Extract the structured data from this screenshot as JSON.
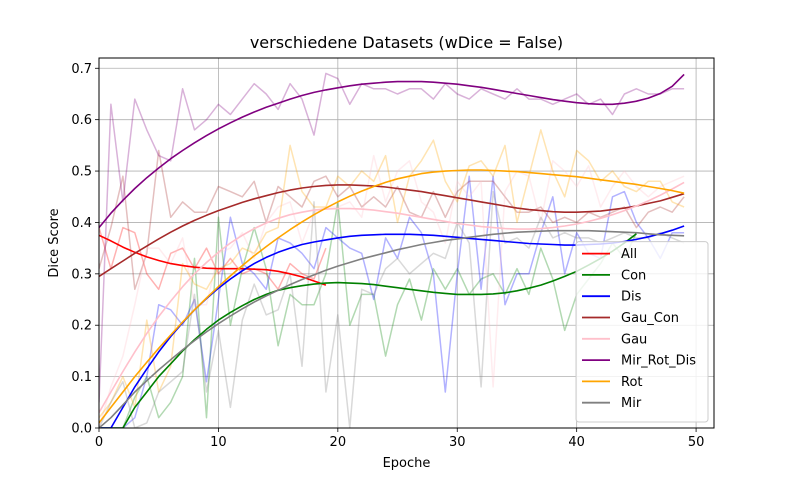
{
  "chart_data": {
    "type": "line",
    "title": "verschiedene Datasets (wDice = False)",
    "xlabel": "Epoche",
    "ylabel": "Dice Score",
    "xlim": [
      0,
      51.5
    ],
    "ylim": [
      0,
      0.72
    ],
    "xticks": [
      0,
      10,
      20,
      30,
      40,
      50
    ],
    "yticks": [
      0.0,
      0.1,
      0.2,
      0.3,
      0.4,
      0.5,
      0.6,
      0.7
    ],
    "grid": true,
    "legend_position": "lower-right",
    "series": [
      {
        "name": "All",
        "color": "#ff0000",
        "raw": [
          0.39,
          0.31,
          0.39,
          0.38,
          0.3,
          0.27,
          0.34,
          0.35,
          0.31,
          0.35,
          0.3,
          0.33,
          0.3,
          0.31,
          0.3,
          0.27,
          0.32,
          0.3,
          0.29,
          0.35
        ],
        "fit": [
          0.375,
          0.364,
          0.352,
          0.342,
          0.333,
          0.326,
          0.32,
          0.316,
          0.313,
          0.311,
          0.31,
          0.31,
          0.31,
          0.309,
          0.308,
          0.305,
          0.3,
          0.294,
          0.286,
          0.278
        ]
      },
      {
        "name": "Con",
        "color": "#008000",
        "raw": [
          0.0,
          0.0,
          0.0,
          0.06,
          0.1,
          0.02,
          0.05,
          0.1,
          0.33,
          0.02,
          0.41,
          0.2,
          0.31,
          0.39,
          0.31,
          0.16,
          0.26,
          0.24,
          0.24,
          0.3,
          0.44,
          0.2,
          0.26,
          0.26,
          0.14,
          0.24,
          0.29,
          0.21,
          0.31,
          0.27,
          0.31,
          0.26,
          0.29,
          0.3,
          0.26,
          0.31,
          0.26,
          0.35,
          0.29,
          0.19,
          0.26,
          0.29,
          0.32,
          0.36,
          0.33,
          0.38
        ],
        "fit": [
          0.0,
          0.0,
          0.0,
          0.04,
          0.07,
          0.1,
          0.125,
          0.15,
          0.172,
          0.192,
          0.21,
          0.225,
          0.238,
          0.25,
          0.26,
          0.268,
          0.273,
          0.277,
          0.28,
          0.282,
          0.283,
          0.282,
          0.281,
          0.279,
          0.276,
          0.273,
          0.27,
          0.267,
          0.264,
          0.262,
          0.26,
          0.26,
          0.26,
          0.261,
          0.263,
          0.267,
          0.272,
          0.278,
          0.286,
          0.295,
          0.305,
          0.317,
          0.33,
          0.344,
          0.36,
          0.378
        ]
      },
      {
        "name": "Dis",
        "color": "#0000ff",
        "raw": [
          0.0,
          0.0,
          0.0,
          0.02,
          0.1,
          0.24,
          0.23,
          0.2,
          0.25,
          0.09,
          0.25,
          0.41,
          0.32,
          0.3,
          0.27,
          0.37,
          0.36,
          0.34,
          0.31,
          0.39,
          0.37,
          0.35,
          0.34,
          0.25,
          0.37,
          0.33,
          0.41,
          0.38,
          0.3,
          0.07,
          0.3,
          0.49,
          0.27,
          0.49,
          0.24,
          0.3,
          0.3,
          0.38,
          0.45,
          0.3,
          0.38,
          0.34,
          0.33,
          0.45,
          0.46,
          0.4,
          0.37,
          0.33,
          0.38,
          0.38
        ],
        "fit": [
          0.0,
          0.0,
          0.04,
          0.08,
          0.115,
          0.148,
          0.178,
          0.205,
          0.23,
          0.252,
          0.272,
          0.29,
          0.306,
          0.32,
          0.332,
          0.342,
          0.35,
          0.357,
          0.362,
          0.366,
          0.37,
          0.373,
          0.375,
          0.376,
          0.377,
          0.377,
          0.377,
          0.376,
          0.375,
          0.373,
          0.371,
          0.369,
          0.367,
          0.365,
          0.363,
          0.361,
          0.359,
          0.358,
          0.357,
          0.356,
          0.356,
          0.357,
          0.358,
          0.36,
          0.363,
          0.367,
          0.372,
          0.378,
          0.385,
          0.393
        ]
      },
      {
        "name": "Gau_Con",
        "color": "#a52a2a",
        "raw": [
          0.31,
          0.39,
          0.49,
          0.27,
          0.34,
          0.54,
          0.41,
          0.44,
          0.42,
          0.42,
          0.47,
          0.46,
          0.45,
          0.48,
          0.4,
          0.47,
          0.45,
          0.43,
          0.48,
          0.49,
          0.45,
          0.47,
          0.43,
          0.45,
          0.43,
          0.47,
          0.42,
          0.41,
          0.46,
          0.41,
          0.46,
          0.48,
          0.48,
          0.48,
          0.45,
          0.42,
          0.42,
          0.43,
          0.4,
          0.41,
          0.4,
          0.42,
          0.41,
          0.42,
          0.43,
          0.39,
          0.42,
          0.43,
          0.42,
          0.45
        ],
        "fit": [
          0.295,
          0.31,
          0.325,
          0.34,
          0.354,
          0.368,
          0.381,
          0.393,
          0.404,
          0.414,
          0.423,
          0.431,
          0.439,
          0.446,
          0.452,
          0.458,
          0.463,
          0.467,
          0.47,
          0.472,
          0.473,
          0.473,
          0.472,
          0.471,
          0.469,
          0.466,
          0.463,
          0.46,
          0.456,
          0.452,
          0.448,
          0.444,
          0.44,
          0.436,
          0.432,
          0.428,
          0.425,
          0.423,
          0.421,
          0.42,
          0.42,
          0.421,
          0.422,
          0.425,
          0.428,
          0.432,
          0.437,
          0.442,
          0.449,
          0.456
        ]
      },
      {
        "name": "Gau",
        "color": "#ffc0cb",
        "raw": [
          0.0,
          0.08,
          0.14,
          0.24,
          0.35,
          0.35,
          0.32,
          0.37,
          0.24,
          0.24,
          0.34,
          0.35,
          0.38,
          0.33,
          0.4,
          0.43,
          0.44,
          0.36,
          0.42,
          0.43,
          0.43,
          0.44,
          0.41,
          0.53,
          0.44,
          0.5,
          0.52,
          0.44,
          0.42,
          0.36,
          0.48,
          0.45,
          0.48,
          0.08,
          0.46,
          0.5,
          0.49,
          0.4,
          0.52,
          0.5,
          0.47,
          0.51,
          0.43,
          0.47,
          0.5,
          0.47,
          0.45,
          0.47,
          0.48,
          0.49
        ],
        "fit": [
          0.03,
          0.07,
          0.11,
          0.148,
          0.184,
          0.217,
          0.247,
          0.275,
          0.3,
          0.322,
          0.342,
          0.36,
          0.375,
          0.388,
          0.399,
          0.408,
          0.415,
          0.42,
          0.424,
          0.426,
          0.427,
          0.427,
          0.426,
          0.424,
          0.421,
          0.418,
          0.414,
          0.41,
          0.406,
          0.402,
          0.398,
          0.395,
          0.392,
          0.39,
          0.388,
          0.387,
          0.387,
          0.388,
          0.39,
          0.393,
          0.397,
          0.402,
          0.408,
          0.415,
          0.423,
          0.432,
          0.442,
          0.453,
          0.465,
          0.478
        ]
      },
      {
        "name": "Mir_Rot_Dis",
        "color": "#800080",
        "raw": [
          0.05,
          0.63,
          0.44,
          0.64,
          0.58,
          0.53,
          0.52,
          0.66,
          0.58,
          0.6,
          0.63,
          0.61,
          0.64,
          0.67,
          0.65,
          0.62,
          0.67,
          0.64,
          0.57,
          0.69,
          0.68,
          0.63,
          0.67,
          0.66,
          0.66,
          0.65,
          0.66,
          0.66,
          0.64,
          0.67,
          0.65,
          0.64,
          0.66,
          0.65,
          0.64,
          0.66,
          0.64,
          0.64,
          0.63,
          0.64,
          0.65,
          0.63,
          0.64,
          0.61,
          0.65,
          0.66,
          0.65,
          0.65,
          0.66,
          0.66
        ],
        "fit": [
          0.39,
          0.418,
          0.443,
          0.466,
          0.487,
          0.506,
          0.524,
          0.54,
          0.555,
          0.569,
          0.582,
          0.594,
          0.605,
          0.615,
          0.624,
          0.632,
          0.64,
          0.647,
          0.653,
          0.658,
          0.662,
          0.666,
          0.669,
          0.671,
          0.673,
          0.674,
          0.674,
          0.674,
          0.673,
          0.671,
          0.669,
          0.666,
          0.663,
          0.659,
          0.655,
          0.651,
          0.647,
          0.643,
          0.639,
          0.636,
          0.633,
          0.631,
          0.63,
          0.63,
          0.632,
          0.636,
          0.642,
          0.651,
          0.665,
          0.688
        ]
      },
      {
        "name": "Rot",
        "color": "#ffa500",
        "raw": [
          0.02,
          0.05,
          0.1,
          0.04,
          0.21,
          0.07,
          0.12,
          0.32,
          0.28,
          0.27,
          0.31,
          0.32,
          0.35,
          0.34,
          0.38,
          0.39,
          0.55,
          0.46,
          0.43,
          0.43,
          0.49,
          0.47,
          0.5,
          0.48,
          0.53,
          0.4,
          0.49,
          0.52,
          0.56,
          0.48,
          0.44,
          0.51,
          0.52,
          0.49,
          0.55,
          0.4,
          0.49,
          0.58,
          0.5,
          0.45,
          0.54,
          0.52,
          0.48,
          0.5,
          0.47,
          0.46,
          0.48,
          0.48,
          0.44,
          0.43
        ],
        "fit": [
          0.01,
          0.04,
          0.07,
          0.1,
          0.128,
          0.155,
          0.181,
          0.206,
          0.23,
          0.253,
          0.275,
          0.296,
          0.316,
          0.335,
          0.353,
          0.37,
          0.386,
          0.401,
          0.415,
          0.428,
          0.44,
          0.451,
          0.461,
          0.47,
          0.478,
          0.485,
          0.49,
          0.495,
          0.498,
          0.5,
          0.501,
          0.502,
          0.502,
          0.501,
          0.5,
          0.499,
          0.497,
          0.495,
          0.493,
          0.491,
          0.489,
          0.486,
          0.483,
          0.48,
          0.477,
          0.474,
          0.47,
          0.466,
          0.462,
          0.457
        ]
      },
      {
        "name": "Mir",
        "color": "#808080",
        "raw": [
          0.0,
          0.05,
          0.09,
          0.0,
          0.01,
          0.07,
          0.09,
          0.11,
          0.26,
          0.07,
          0.19,
          0.04,
          0.21,
          0.28,
          0.22,
          0.23,
          0.3,
          0.12,
          0.44,
          0.07,
          0.22,
          0.0,
          0.27,
          0.26,
          0.31,
          0.33,
          0.3,
          0.32,
          0.34,
          0.33,
          0.4,
          0.36,
          0.08,
          0.46,
          0.36,
          0.37,
          0.35,
          0.41,
          0.37,
          0.38,
          0.37,
          0.37,
          0.36,
          0.37,
          0.38,
          0.37,
          0.37,
          0.38,
          0.37,
          0.36
        ],
        "fit": [
          0.0,
          0.02,
          0.045,
          0.07,
          0.092,
          0.113,
          0.133,
          0.152,
          0.17,
          0.187,
          0.203,
          0.218,
          0.232,
          0.245,
          0.257,
          0.268,
          0.279,
          0.289,
          0.298,
          0.307,
          0.315,
          0.322,
          0.329,
          0.335,
          0.341,
          0.347,
          0.352,
          0.357,
          0.361,
          0.365,
          0.368,
          0.371,
          0.374,
          0.377,
          0.379,
          0.381,
          0.382,
          0.383,
          0.384,
          0.384,
          0.384,
          0.384,
          0.383,
          0.382,
          0.381,
          0.38,
          0.378,
          0.376,
          0.375,
          0.374
        ]
      }
    ]
  }
}
